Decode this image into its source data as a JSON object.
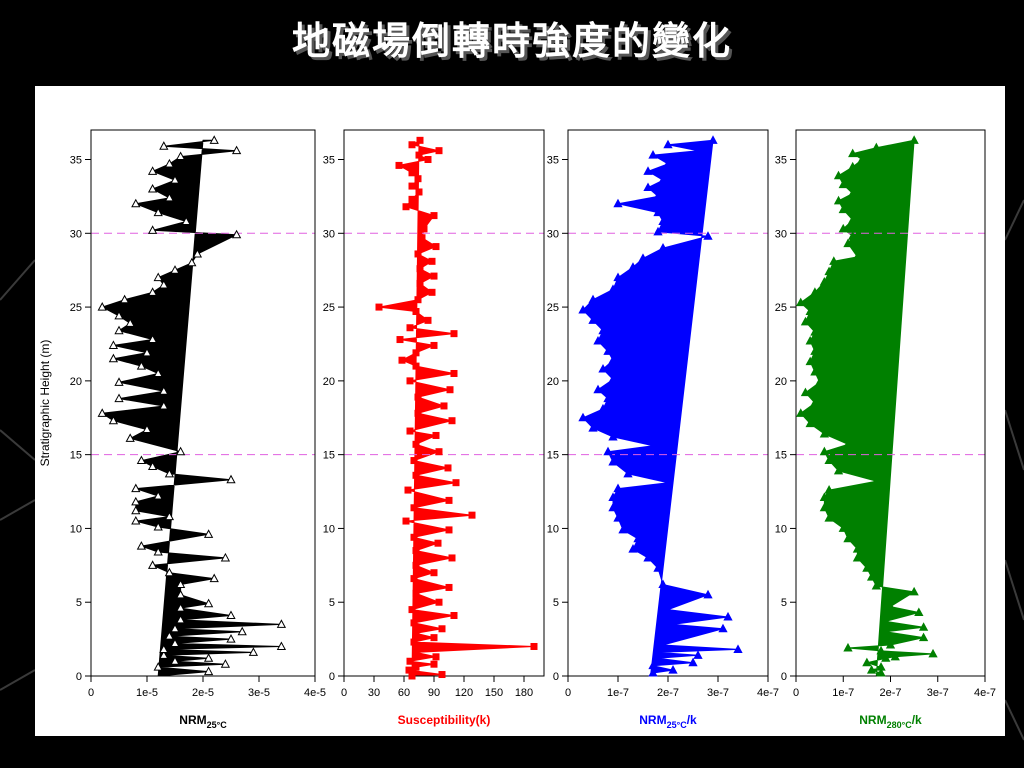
{
  "slide": {
    "title": "地磁場倒轉時強度的變化"
  },
  "colors": {
    "background": "#000000",
    "panel": "#ffffff",
    "reference_line": "#e060e0"
  },
  "chart_data": [
    {
      "type": "area",
      "xlabel": "NRM",
      "xlabel_sub": "25°C",
      "xlabel_suffix": "",
      "ylabel": "Stratigraphic Height (m)",
      "xlim": [
        0,
        4e-05
      ],
      "ylim": [
        0,
        37
      ],
      "xticks": [
        0,
        1e-05,
        2e-05,
        3e-05,
        4e-05
      ],
      "xtick_labels": [
        "0",
        "1e-5",
        "2e-5",
        "3e-5",
        "4e-5"
      ],
      "yticks": [
        0,
        5,
        10,
        15,
        20,
        25,
        30,
        35
      ],
      "reference_lines_y": [
        15,
        30
      ],
      "color": "#000000",
      "marker": "triangle-open",
      "fill_from_line": [
        [
          1.2e-05,
          0
        ],
        [
          2e-05,
          36.3
        ]
      ],
      "points": [
        [
          2.1e-05,
          0.3
        ],
        [
          1.2e-05,
          0.6
        ],
        [
          2.4e-05,
          0.8
        ],
        [
          1.5e-05,
          1.0
        ],
        [
          2.1e-05,
          1.2
        ],
        [
          1.3e-05,
          1.4
        ],
        [
          2.9e-05,
          1.6
        ],
        [
          1.3e-05,
          1.8
        ],
        [
          3.4e-05,
          2.0
        ],
        [
          1.5e-05,
          2.2
        ],
        [
          2.5e-05,
          2.5
        ],
        [
          1.4e-05,
          2.7
        ],
        [
          2.7e-05,
          3.0
        ],
        [
          1.5e-05,
          3.2
        ],
        [
          3.4e-05,
          3.5
        ],
        [
          1.6e-05,
          3.8
        ],
        [
          2.5e-05,
          4.1
        ],
        [
          1.6e-05,
          4.6
        ],
        [
          2.1e-05,
          4.9
        ],
        [
          1.6e-05,
          5.5
        ],
        [
          1.6e-05,
          6.2
        ],
        [
          2.2e-05,
          6.6
        ],
        [
          1.4e-05,
          7.0
        ],
        [
          1.1e-05,
          7.5
        ],
        [
          2.4e-05,
          8.0
        ],
        [
          1.2e-05,
          8.4
        ],
        [
          9e-06,
          8.8
        ],
        [
          2.1e-05,
          9.6
        ],
        [
          1.2e-05,
          10.1
        ],
        [
          8e-06,
          10.5
        ],
        [
          1.4e-05,
          10.8
        ],
        [
          8e-06,
          11.2
        ],
        [
          8e-06,
          11.8
        ],
        [
          1.2e-05,
          12.2
        ],
        [
          8e-06,
          12.7
        ],
        [
          2.5e-05,
          13.3
        ],
        [
          1.4e-05,
          13.7
        ],
        [
          1.1e-05,
          14.2
        ],
        [
          9e-06,
          14.6
        ],
        [
          1.6e-05,
          15.2
        ],
        [
          7e-06,
          16.1
        ],
        [
          1e-05,
          16.7
        ],
        [
          4e-06,
          17.3
        ],
        [
          2e-06,
          17.8
        ],
        [
          1.3e-05,
          18.3
        ],
        [
          5e-06,
          18.8
        ],
        [
          1.3e-05,
          19.3
        ],
        [
          5e-06,
          19.9
        ],
        [
          1.2e-05,
          20.5
        ],
        [
          9e-06,
          21.0
        ],
        [
          4e-06,
          21.5
        ],
        [
          1e-05,
          21.9
        ],
        [
          4e-06,
          22.4
        ],
        [
          1.1e-05,
          22.8
        ],
        [
          5e-06,
          23.4
        ],
        [
          7e-06,
          23.9
        ],
        [
          5e-06,
          24.4
        ],
        [
          2e-06,
          25.0
        ],
        [
          6e-06,
          25.5
        ],
        [
          1.1e-05,
          26.0
        ],
        [
          1.3e-05,
          26.5
        ],
        [
          1.2e-05,
          27.0
        ],
        [
          1.5e-05,
          27.5
        ],
        [
          1.8e-05,
          28.0
        ],
        [
          1.9e-05,
          28.6
        ],
        [
          2.6e-05,
          29.9
        ],
        [
          1.1e-05,
          30.2
        ],
        [
          1.7e-05,
          30.8
        ],
        [
          1.2e-05,
          31.4
        ],
        [
          8e-06,
          32.0
        ],
        [
          1.4e-05,
          32.4
        ],
        [
          1.1e-05,
          33.0
        ],
        [
          1.5e-05,
          33.6
        ],
        [
          1.1e-05,
          34.2
        ],
        [
          1.4e-05,
          34.7
        ],
        [
          1.6e-05,
          35.2
        ],
        [
          2.6e-05,
          35.6
        ],
        [
          1.3e-05,
          35.9
        ],
        [
          2.2e-05,
          36.3
        ]
      ]
    },
    {
      "type": "area",
      "xlabel": "Susceptibility(k)",
      "xlabel_sub": "",
      "xlabel_suffix": "",
      "ylabel": "",
      "xlim": [
        0,
        200
      ],
      "ylim": [
        0,
        37
      ],
      "xticks": [
        0,
        30,
        60,
        90,
        120,
        150,
        180
      ],
      "xtick_labels": [
        "0",
        "30",
        "60",
        "90",
        "120",
        "150",
        "180"
      ],
      "yticks": [
        0,
        5,
        10,
        15,
        20,
        25,
        30,
        35
      ],
      "reference_lines_y": [
        15,
        30
      ],
      "color": "#ff0000",
      "marker": "square-filled",
      "fill_from_line": [
        [
          68,
          0
        ],
        [
          75,
          36.3
        ]
      ],
      "points": [
        [
          68,
          0.0
        ],
        [
          98,
          0.1
        ],
        [
          65,
          0.4
        ],
        [
          72,
          0.6
        ],
        [
          90,
          0.8
        ],
        [
          66,
          1.0
        ],
        [
          92,
          1.3
        ],
        [
          72,
          1.6
        ],
        [
          190,
          2.0
        ],
        [
          70,
          2.3
        ],
        [
          90,
          2.6
        ],
        [
          72,
          2.9
        ],
        [
          98,
          3.2
        ],
        [
          70,
          3.6
        ],
        [
          110,
          4.1
        ],
        [
          68,
          4.5
        ],
        [
          95,
          5.0
        ],
        [
          72,
          5.6
        ],
        [
          105,
          6.0
        ],
        [
          70,
          6.6
        ],
        [
          90,
          7.0
        ],
        [
          72,
          7.5
        ],
        [
          108,
          8.0
        ],
        [
          72,
          8.5
        ],
        [
          94,
          9.0
        ],
        [
          70,
          9.4
        ],
        [
          105,
          9.9
        ],
        [
          62,
          10.5
        ],
        [
          128,
          10.9
        ],
        [
          70,
          11.4
        ],
        [
          105,
          11.9
        ],
        [
          64,
          12.6
        ],
        [
          112,
          13.1
        ],
        [
          72,
          13.6
        ],
        [
          104,
          14.1
        ],
        [
          70,
          14.6
        ],
        [
          95,
          15.2
        ],
        [
          72,
          15.7
        ],
        [
          92,
          16.3
        ],
        [
          66,
          16.6
        ],
        [
          108,
          17.3
        ],
        [
          74,
          17.8
        ],
        [
          100,
          18.3
        ],
        [
          74,
          18.9
        ],
        [
          106,
          19.4
        ],
        [
          66,
          20.0
        ],
        [
          110,
          20.5
        ],
        [
          72,
          21.0
        ],
        [
          58,
          21.4
        ],
        [
          72,
          21.9
        ],
        [
          90,
          22.4
        ],
        [
          56,
          22.8
        ],
        [
          110,
          23.2
        ],
        [
          66,
          23.6
        ],
        [
          84,
          24.1
        ],
        [
          72,
          24.7
        ],
        [
          35,
          25.0
        ],
        [
          74,
          25.5
        ],
        [
          88,
          26.0
        ],
        [
          76,
          26.6
        ],
        [
          90,
          27.1
        ],
        [
          76,
          27.6
        ],
        [
          88,
          28.1
        ],
        [
          74,
          28.6
        ],
        [
          92,
          29.1
        ],
        [
          78,
          29.7
        ],
        [
          80,
          30.3
        ],
        [
          90,
          31.2
        ],
        [
          62,
          31.8
        ],
        [
          68,
          32.3
        ],
        [
          75,
          32.8
        ],
        [
          68,
          33.2
        ],
        [
          74,
          33.7
        ],
        [
          68,
          34.1
        ],
        [
          55,
          34.6
        ],
        [
          84,
          35.0
        ],
        [
          75,
          35.3
        ],
        [
          95,
          35.6
        ],
        [
          68,
          36.0
        ],
        [
          76,
          36.3
        ]
      ]
    },
    {
      "type": "area",
      "xlabel": "NRM",
      "xlabel_sub": "25°C",
      "xlabel_suffix": "/k",
      "ylabel": "",
      "xlim": [
        0,
        4e-07
      ],
      "ylim": [
        0,
        37
      ],
      "xticks": [
        0,
        1e-07,
        2e-07,
        3e-07,
        4e-07
      ],
      "xtick_labels": [
        "0",
        "1e-7",
        "2e-7",
        "3e-7",
        "4e-7"
      ],
      "yticks": [
        0,
        5,
        10,
        15,
        20,
        25,
        30,
        35
      ],
      "reference_lines_y": [
        15,
        30
      ],
      "color": "#0000ff",
      "marker": "triangle-filled",
      "fill_from_line": [
        [
          1.65e-07,
          0
        ],
        [
          2.9e-07,
          36.3
        ]
      ],
      "points": [
        [
          1.7e-07,
          0.2
        ],
        [
          2.1e-07,
          0.4
        ],
        [
          1.7e-07,
          0.7
        ],
        [
          2.5e-07,
          0.9
        ],
        [
          1.8e-07,
          1.2
        ],
        [
          2.6e-07,
          1.4
        ],
        [
          1.8e-07,
          1.6
        ],
        [
          3.4e-07,
          1.8
        ],
        [
          1.9e-07,
          2.1
        ],
        [
          3.1e-07,
          3.2
        ],
        [
          2.1e-07,
          3.5
        ],
        [
          3.2e-07,
          4.0
        ],
        [
          2e-07,
          4.5
        ],
        [
          2.8e-07,
          5.5
        ],
        [
          1.9e-07,
          6.2
        ],
        [
          1.8e-07,
          7.3
        ],
        [
          1.6e-07,
          8.0
        ],
        [
          1.3e-07,
          8.6
        ],
        [
          1.4e-07,
          9.3
        ],
        [
          1.1e-07,
          9.9
        ],
        [
          1e-07,
          10.7
        ],
        [
          9e-08,
          11.4
        ],
        [
          9e-08,
          12.1
        ],
        [
          1e-07,
          12.7
        ],
        [
          2e-07,
          13.1
        ],
        [
          1.2e-07,
          13.7
        ],
        [
          9e-08,
          14.5
        ],
        [
          8e-08,
          15.2
        ],
        [
          1.7e-07,
          15.6
        ],
        [
          9e-08,
          16.2
        ],
        [
          5e-08,
          16.8
        ],
        [
          3e-08,
          17.5
        ],
        [
          7e-08,
          18.1
        ],
        [
          8e-08,
          18.8
        ],
        [
          6e-08,
          19.4
        ],
        [
          9e-08,
          20.1
        ],
        [
          7e-08,
          20.8
        ],
        [
          9e-08,
          21.4
        ],
        [
          8e-08,
          22.0
        ],
        [
          6e-08,
          22.7
        ],
        [
          7e-08,
          23.4
        ],
        [
          5e-08,
          24.1
        ],
        [
          3e-08,
          24.8
        ],
        [
          5e-08,
          25.5
        ],
        [
          9e-08,
          26.2
        ],
        [
          1e-07,
          27.0
        ],
        [
          1.3e-07,
          27.7
        ],
        [
          1.5e-07,
          28.3
        ],
        [
          1.9e-07,
          29.0
        ],
        [
          2.8e-07,
          29.8
        ],
        [
          1.8e-07,
          30.1
        ],
        [
          1.9e-07,
          30.8
        ],
        [
          1.8e-07,
          31.4
        ],
        [
          1e-07,
          32.0
        ],
        [
          1.8e-07,
          32.5
        ],
        [
          1.6e-07,
          33.1
        ],
        [
          1.9e-07,
          33.6
        ],
        [
          1.6e-07,
          34.2
        ],
        [
          2e-07,
          34.7
        ],
        [
          1.7e-07,
          35.3
        ],
        [
          2.6e-07,
          35.6
        ],
        [
          2e-07,
          36.0
        ],
        [
          2.9e-07,
          36.3
        ]
      ]
    },
    {
      "type": "area",
      "xlabel": "NRM",
      "xlabel_sub": "280°C",
      "xlabel_suffix": "/k",
      "ylabel": "",
      "xlim": [
        0,
        4e-07
      ],
      "ylim": [
        0,
        37
      ],
      "xticks": [
        0,
        1e-07,
        2e-07,
        3e-07,
        4e-07
      ],
      "xtick_labels": [
        "0",
        "1e-7",
        "2e-7",
        "3e-7",
        "4e-7"
      ],
      "yticks": [
        0,
        5,
        10,
        15,
        20,
        25,
        30,
        35
      ],
      "reference_lines_y": [
        15,
        30
      ],
      "color": "#008000",
      "marker": "triangle-filled",
      "fill_from_line": [
        [
          1.7e-07,
          0
        ],
        [
          2.5e-07,
          36.3
        ]
      ],
      "points": [
        [
          1.8e-07,
          0.2
        ],
        [
          1.6e-07,
          0.4
        ],
        [
          1.8e-07,
          0.6
        ],
        [
          1.5e-07,
          0.9
        ],
        [
          1.9e-07,
          1.2
        ],
        [
          2.1e-07,
          1.3
        ],
        [
          2.9e-07,
          1.5
        ],
        [
          1.8e-07,
          1.7
        ],
        [
          1.1e-07,
          1.9
        ],
        [
          2e-07,
          2.1
        ],
        [
          2.7e-07,
          2.6
        ],
        [
          1.9e-07,
          3.0
        ],
        [
          2.7e-07,
          3.3
        ],
        [
          1.9e-07,
          3.7
        ],
        [
          2.6e-07,
          4.3
        ],
        [
          2e-07,
          4.7
        ],
        [
          2.5e-07,
          5.7
        ],
        [
          1.7e-07,
          6.1
        ],
        [
          1.6e-07,
          6.7
        ],
        [
          1.5e-07,
          7.3
        ],
        [
          1.3e-07,
          8.0
        ],
        [
          1.3e-07,
          8.6
        ],
        [
          1.1e-07,
          9.3
        ],
        [
          1e-07,
          10.0
        ],
        [
          7e-08,
          10.7
        ],
        [
          6e-08,
          11.4
        ],
        [
          6e-08,
          12.1
        ],
        [
          7e-08,
          12.6
        ],
        [
          1.7e-07,
          13.2
        ],
        [
          9e-08,
          13.9
        ],
        [
          7e-08,
          14.6
        ],
        [
          6e-08,
          15.2
        ],
        [
          1.1e-07,
          15.7
        ],
        [
          6e-08,
          16.4
        ],
        [
          3e-08,
          17.1
        ],
        [
          1e-08,
          17.8
        ],
        [
          4e-08,
          18.5
        ],
        [
          2e-08,
          19.2
        ],
        [
          5e-08,
          19.9
        ],
        [
          4e-08,
          20.6
        ],
        [
          3e-08,
          21.3
        ],
        [
          4e-08,
          22.0
        ],
        [
          3e-08,
          22.7
        ],
        [
          4e-08,
          23.3
        ],
        [
          2e-08,
          24.0
        ],
        [
          3e-08,
          24.7
        ],
        [
          1e-08,
          25.3
        ],
        [
          4e-08,
          26.0
        ],
        [
          6e-08,
          26.7
        ],
        [
          7e-08,
          27.4
        ],
        [
          8e-08,
          28.1
        ],
        [
          1.3e-07,
          28.4
        ],
        [
          1.1e-07,
          29.3
        ],
        [
          1.2e-07,
          29.8
        ],
        [
          1e-07,
          30.3
        ],
        [
          1.2e-07,
          30.9
        ],
        [
          1e-07,
          31.6
        ],
        [
          9e-08,
          32.2
        ],
        [
          1.2e-07,
          32.7
        ],
        [
          1e-07,
          33.3
        ],
        [
          9e-08,
          33.9
        ],
        [
          1.2e-07,
          34.5
        ],
        [
          1.4e-07,
          35.0
        ],
        [
          1.2e-07,
          35.4
        ],
        [
          1.7e-07,
          35.8
        ],
        [
          2.5e-07,
          36.3
        ]
      ]
    }
  ]
}
